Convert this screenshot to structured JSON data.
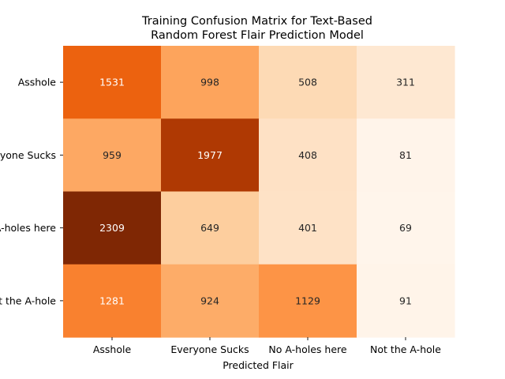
{
  "chart_data": {
    "type": "heatmap",
    "title_line1": "Training Confusion Matrix for Text-Based",
    "title_line2": "Random Forest Flair Prediction Model",
    "xlabel": "Predicted Flair",
    "ylabel": "",
    "x_categories": [
      "Asshole",
      "Everyone Sucks",
      "No A-holes here",
      "Not the A-hole"
    ],
    "y_categories": [
      "Asshole",
      "Everyone Sucks",
      "No A-holes here",
      "Not the A-hole"
    ],
    "values": [
      [
        1531,
        998,
        508,
        311
      ],
      [
        959,
        1977,
        408,
        81
      ],
      [
        2309,
        649,
        401,
        69
      ],
      [
        1281,
        924,
        1129,
        91
      ]
    ],
    "colormap": "Oranges",
    "vmin": 69,
    "vmax": 2309,
    "colorbar": false,
    "colors": {
      "low": "#fff5eb",
      "high": "#7f2704",
      "text_dark": "#262626",
      "text_light": "#ffffff"
    }
  }
}
